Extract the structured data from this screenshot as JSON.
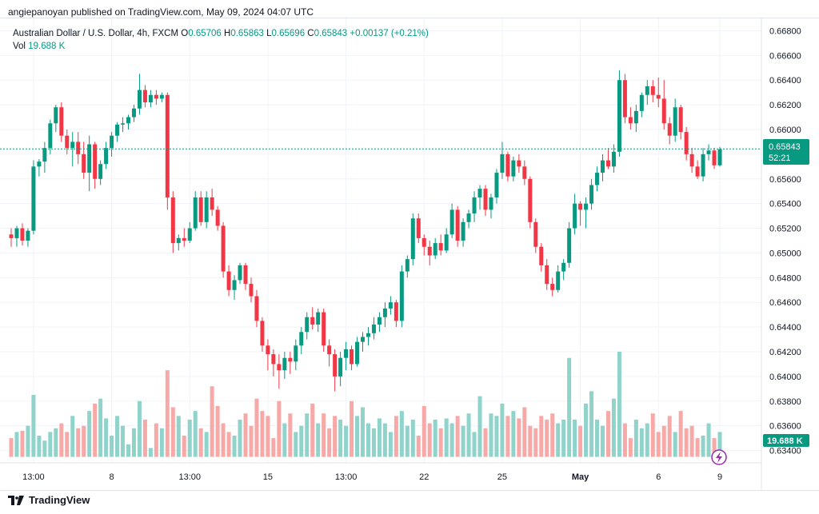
{
  "header": {
    "publisher_line": "angiepanoyan published on TradingView.com, May 09, 2024 04:07 UTC"
  },
  "legend": {
    "symbol": "Australian Dollar / U.S. Dollar, 4h, FXCM",
    "o_label": "O",
    "o_value": "0.65706",
    "h_label": "H",
    "h_value": "0.65863",
    "l_label": "L",
    "l_value": "0.65696",
    "c_label": "C",
    "c_value": "0.65843",
    "change": "+0.00137 (+0.21%)",
    "vol_label": "Vol",
    "vol_value": "19.688 K"
  },
  "price_scale": {
    "labels": [
      "0.66800",
      "0.66600",
      "0.66400",
      "0.66200",
      "0.66000",
      "0.65800",
      "0.65600",
      "0.65400",
      "0.65200",
      "0.65000",
      "0.64800",
      "0.64600",
      "0.64400",
      "0.64200",
      "0.64000",
      "0.63800",
      "0.63600",
      "0.63400"
    ],
    "last_price_label": "0.65843",
    "countdown_label": "52:21",
    "volume_label": "19.688 K"
  },
  "time_scale": {
    "labels": [
      "13:00",
      "8",
      "13:00",
      "15",
      "13:00",
      "22",
      "25",
      "May",
      "6",
      "9"
    ]
  },
  "footer": {
    "brand": "TradingView"
  },
  "colors": {
    "up": "#089981",
    "down": "#f23645",
    "vol_up": "#8fd3cb",
    "vol_down": "#f7a9a7",
    "grid": "#f0f3fa",
    "last_line": "#089981"
  },
  "chart_data": {
    "type": "candlestick",
    "title": "Australian Dollar / U.S. Dollar, 4h, FXCM",
    "ylim": [
      0.633,
      0.669
    ],
    "y_ticks": [
      0.668,
      0.666,
      0.664,
      0.662,
      0.66,
      0.658,
      0.656,
      0.654,
      0.652,
      0.65,
      0.648,
      0.646,
      0.644,
      0.642,
      0.64,
      0.638,
      0.636,
      0.634
    ],
    "last_close": 0.65843,
    "x_tick_labels": [
      "13:00",
      "8",
      "13:00",
      "15",
      "13:00",
      "22",
      "25",
      "May",
      "6",
      "9"
    ],
    "candles": [
      [
        0.6515,
        0.652,
        0.6505,
        0.6512
      ],
      [
        0.6512,
        0.6522,
        0.6505,
        0.652
      ],
      [
        0.652,
        0.6524,
        0.6506,
        0.651
      ],
      [
        0.651,
        0.652,
        0.6505,
        0.6518
      ],
      [
        0.6518,
        0.6575,
        0.6515,
        0.657
      ],
      [
        0.657,
        0.6576,
        0.6562,
        0.6574
      ],
      [
        0.6574,
        0.659,
        0.6565,
        0.6585
      ],
      [
        0.6585,
        0.6608,
        0.658,
        0.6605
      ],
      [
        0.6605,
        0.662,
        0.6598,
        0.6618
      ],
      [
        0.6618,
        0.6622,
        0.659,
        0.6595
      ],
      [
        0.6595,
        0.66,
        0.658,
        0.6585
      ],
      [
        0.6585,
        0.6598,
        0.657,
        0.659
      ],
      [
        0.659,
        0.6598,
        0.6572,
        0.658
      ],
      [
        0.658,
        0.659,
        0.656,
        0.6565
      ],
      [
        0.6565,
        0.6595,
        0.655,
        0.6588
      ],
      [
        0.6588,
        0.659,
        0.6552,
        0.656
      ],
      [
        0.656,
        0.6575,
        0.6555,
        0.6572
      ],
      [
        0.6572,
        0.659,
        0.6568,
        0.6585
      ],
      [
        0.6585,
        0.6598,
        0.6578,
        0.6595
      ],
      [
        0.6595,
        0.6606,
        0.659,
        0.6604
      ],
      [
        0.6604,
        0.661,
        0.6598,
        0.6605
      ],
      [
        0.6605,
        0.6612,
        0.66,
        0.661
      ],
      [
        0.661,
        0.662,
        0.6606,
        0.6617
      ],
      [
        0.6617,
        0.6645,
        0.6612,
        0.6632
      ],
      [
        0.6632,
        0.6636,
        0.6618,
        0.6622
      ],
      [
        0.6622,
        0.6632,
        0.6618,
        0.6628
      ],
      [
        0.6628,
        0.6632,
        0.662,
        0.6625
      ],
      [
        0.6625,
        0.663,
        0.6622,
        0.6628
      ],
      [
        0.6628,
        0.663,
        0.6535,
        0.6545
      ],
      [
        0.6545,
        0.655,
        0.65,
        0.6508
      ],
      [
        0.6508,
        0.6515,
        0.6502,
        0.6512
      ],
      [
        0.6512,
        0.652,
        0.6505,
        0.651
      ],
      [
        0.651,
        0.6525,
        0.6508,
        0.652
      ],
      [
        0.652,
        0.655,
        0.6518,
        0.6545
      ],
      [
        0.6545,
        0.655,
        0.6522,
        0.6525
      ],
      [
        0.6525,
        0.655,
        0.652,
        0.6545
      ],
      [
        0.6545,
        0.6552,
        0.653,
        0.6535
      ],
      [
        0.6535,
        0.6538,
        0.6518,
        0.6522
      ],
      [
        0.6522,
        0.6525,
        0.648,
        0.6485
      ],
      [
        0.6485,
        0.649,
        0.6465,
        0.647
      ],
      [
        0.647,
        0.6482,
        0.6462,
        0.6478
      ],
      [
        0.6478,
        0.6492,
        0.6475,
        0.649
      ],
      [
        0.649,
        0.6492,
        0.647,
        0.6475
      ],
      [
        0.6475,
        0.648,
        0.646,
        0.6465
      ],
      [
        0.6465,
        0.647,
        0.644,
        0.6445
      ],
      [
        0.6445,
        0.6448,
        0.642,
        0.6425
      ],
      [
        0.6425,
        0.643,
        0.6405,
        0.6418
      ],
      [
        0.6418,
        0.6422,
        0.64,
        0.641
      ],
      [
        0.641,
        0.6418,
        0.639,
        0.6405
      ],
      [
        0.6405,
        0.642,
        0.6398,
        0.6415
      ],
      [
        0.6415,
        0.642,
        0.6402,
        0.6412
      ],
      [
        0.6412,
        0.643,
        0.6405,
        0.6425
      ],
      [
        0.6425,
        0.644,
        0.6418,
        0.6436
      ],
      [
        0.6436,
        0.6452,
        0.643,
        0.6448
      ],
      [
        0.6448,
        0.6456,
        0.6438,
        0.6442
      ],
      [
        0.6442,
        0.6455,
        0.6436,
        0.6452
      ],
      [
        0.6452,
        0.6455,
        0.642,
        0.6425
      ],
      [
        0.6425,
        0.643,
        0.6408,
        0.6418
      ],
      [
        0.6418,
        0.6422,
        0.6388,
        0.64
      ],
      [
        0.64,
        0.642,
        0.6392,
        0.6415
      ],
      [
        0.6415,
        0.6428,
        0.6405,
        0.6422
      ],
      [
        0.6422,
        0.6425,
        0.6405,
        0.641
      ],
      [
        0.641,
        0.6432,
        0.6408,
        0.6428
      ],
      [
        0.6428,
        0.6436,
        0.642,
        0.6432
      ],
      [
        0.6432,
        0.644,
        0.6425,
        0.6435
      ],
      [
        0.6435,
        0.6448,
        0.643,
        0.6442
      ],
      [
        0.6442,
        0.6452,
        0.6436,
        0.6448
      ],
      [
        0.6448,
        0.646,
        0.644,
        0.6455
      ],
      [
        0.6455,
        0.6465,
        0.645,
        0.646
      ],
      [
        0.646,
        0.6462,
        0.644,
        0.6445
      ],
      [
        0.6445,
        0.649,
        0.644,
        0.6485
      ],
      [
        0.6485,
        0.6498,
        0.648,
        0.6495
      ],
      [
        0.6495,
        0.6532,
        0.649,
        0.6528
      ],
      [
        0.6528,
        0.6532,
        0.6508,
        0.6512
      ],
      [
        0.6512,
        0.6515,
        0.6498,
        0.6505
      ],
      [
        0.6505,
        0.651,
        0.649,
        0.6498
      ],
      [
        0.6498,
        0.6512,
        0.6495,
        0.6508
      ],
      [
        0.6508,
        0.6515,
        0.6498,
        0.6502
      ],
      [
        0.6502,
        0.652,
        0.65,
        0.6515
      ],
      [
        0.6515,
        0.654,
        0.6512,
        0.6535
      ],
      [
        0.6535,
        0.6538,
        0.6505,
        0.651
      ],
      [
        0.651,
        0.6528,
        0.6505,
        0.6525
      ],
      [
        0.6525,
        0.6535,
        0.652,
        0.6532
      ],
      [
        0.6532,
        0.655,
        0.6525,
        0.6545
      ],
      [
        0.6545,
        0.6555,
        0.6535,
        0.6552
      ],
      [
        0.6552,
        0.6555,
        0.653,
        0.6535
      ],
      [
        0.6535,
        0.6548,
        0.6528,
        0.6545
      ],
      [
        0.6545,
        0.6568,
        0.654,
        0.6565
      ],
      [
        0.6565,
        0.659,
        0.656,
        0.658
      ],
      [
        0.658,
        0.6582,
        0.6558,
        0.6562
      ],
      [
        0.6562,
        0.6578,
        0.6558,
        0.6575
      ],
      [
        0.6575,
        0.658,
        0.6565,
        0.657
      ],
      [
        0.657,
        0.6575,
        0.6555,
        0.656
      ],
      [
        0.656,
        0.6562,
        0.652,
        0.6525
      ],
      [
        0.6525,
        0.6528,
        0.65,
        0.6505
      ],
      [
        0.6505,
        0.6508,
        0.6485,
        0.649
      ],
      [
        0.649,
        0.6495,
        0.647,
        0.6475
      ],
      [
        0.6475,
        0.648,
        0.6465,
        0.647
      ],
      [
        0.647,
        0.649,
        0.6468,
        0.6485
      ],
      [
        0.6485,
        0.6495,
        0.6478,
        0.6492
      ],
      [
        0.6492,
        0.6525,
        0.6488,
        0.652
      ],
      [
        0.652,
        0.6548,
        0.6515,
        0.654
      ],
      [
        0.654,
        0.6542,
        0.6522,
        0.6535
      ],
      [
        0.6535,
        0.6545,
        0.652,
        0.654
      ],
      [
        0.654,
        0.656,
        0.6535,
        0.6555
      ],
      [
        0.6555,
        0.657,
        0.655,
        0.6565
      ],
      [
        0.6565,
        0.658,
        0.6558,
        0.6575
      ],
      [
        0.6575,
        0.6585,
        0.6568,
        0.657
      ],
      [
        0.657,
        0.6588,
        0.6565,
        0.6582
      ],
      [
        0.6582,
        0.6648,
        0.6578,
        0.664
      ],
      [
        0.664,
        0.6645,
        0.6605,
        0.661
      ],
      [
        0.661,
        0.6618,
        0.66,
        0.6605
      ],
      [
        0.6605,
        0.662,
        0.6598,
        0.6615
      ],
      [
        0.6615,
        0.663,
        0.661,
        0.6628
      ],
      [
        0.6628,
        0.664,
        0.662,
        0.6635
      ],
      [
        0.6635,
        0.664,
        0.6622,
        0.6628
      ],
      [
        0.6628,
        0.6642,
        0.6618,
        0.6625
      ],
      [
        0.6625,
        0.664,
        0.66,
        0.6605
      ],
      [
        0.6605,
        0.661,
        0.6588,
        0.6595
      ],
      [
        0.6595,
        0.6625,
        0.659,
        0.6618
      ],
      [
        0.6618,
        0.662,
        0.6592,
        0.6598
      ],
      [
        0.6598,
        0.6602,
        0.6575,
        0.658
      ],
      [
        0.658,
        0.6585,
        0.6565,
        0.657
      ],
      [
        0.657,
        0.6575,
        0.656,
        0.6562
      ],
      [
        0.6562,
        0.6585,
        0.6558,
        0.658
      ],
      [
        0.658,
        0.6588,
        0.6575,
        0.6583
      ],
      [
        0.6583,
        0.6585,
        0.6568,
        0.6571
      ],
      [
        0.6571,
        0.6586,
        0.657,
        0.6584
      ]
    ],
    "volume": [
      0.635,
      0.6355,
      0.6356,
      0.636,
      0.6385,
      0.6352,
      0.6348,
      0.6355,
      0.6358,
      0.6362,
      0.6355,
      0.6368,
      0.6358,
      0.636,
      0.6372,
      0.6378,
      0.6382,
      0.6366,
      0.6352,
      0.6368,
      0.636,
      0.6345,
      0.6358,
      0.638,
      0.6365,
      0.6342,
      0.6362,
      0.6358,
      0.6405,
      0.6375,
      0.6368,
      0.6352,
      0.6365,
      0.6372,
      0.6358,
      0.6355,
      0.6392,
      0.6376,
      0.6362,
      0.6355,
      0.6352,
      0.6365,
      0.637,
      0.636,
      0.6382,
      0.6372,
      0.6368,
      0.635,
      0.638,
      0.6362,
      0.637,
      0.6355,
      0.636,
      0.637,
      0.6378,
      0.6362,
      0.637,
      0.6358,
      0.6368,
      0.6365,
      0.636,
      0.638,
      0.6368,
      0.6375,
      0.6362,
      0.6358,
      0.6366,
      0.6362,
      0.6355,
      0.6368,
      0.6372,
      0.636,
      0.6365,
      0.6352,
      0.6376,
      0.6362,
      0.6365,
      0.6358,
      0.6366,
      0.6362,
      0.6368,
      0.636,
      0.637,
      0.6355,
      0.6384,
      0.6358,
      0.637,
      0.6368,
      0.6378,
      0.6368,
      0.6372,
      0.6366,
      0.6375,
      0.636,
      0.6358,
      0.6368,
      0.6365,
      0.637,
      0.6362,
      0.6365,
      0.6415,
      0.6365,
      0.636,
      0.6378,
      0.6388,
      0.6365,
      0.636,
      0.6372,
      0.6382,
      0.642,
      0.6362,
      0.635,
      0.6365,
      0.6358,
      0.6362,
      0.637,
      0.6355,
      0.636,
      0.6368,
      0.6355,
      0.6372,
      0.6358,
      0.636,
      0.635,
      0.6352,
      0.6362,
      0.635,
      0.6355
    ]
  }
}
